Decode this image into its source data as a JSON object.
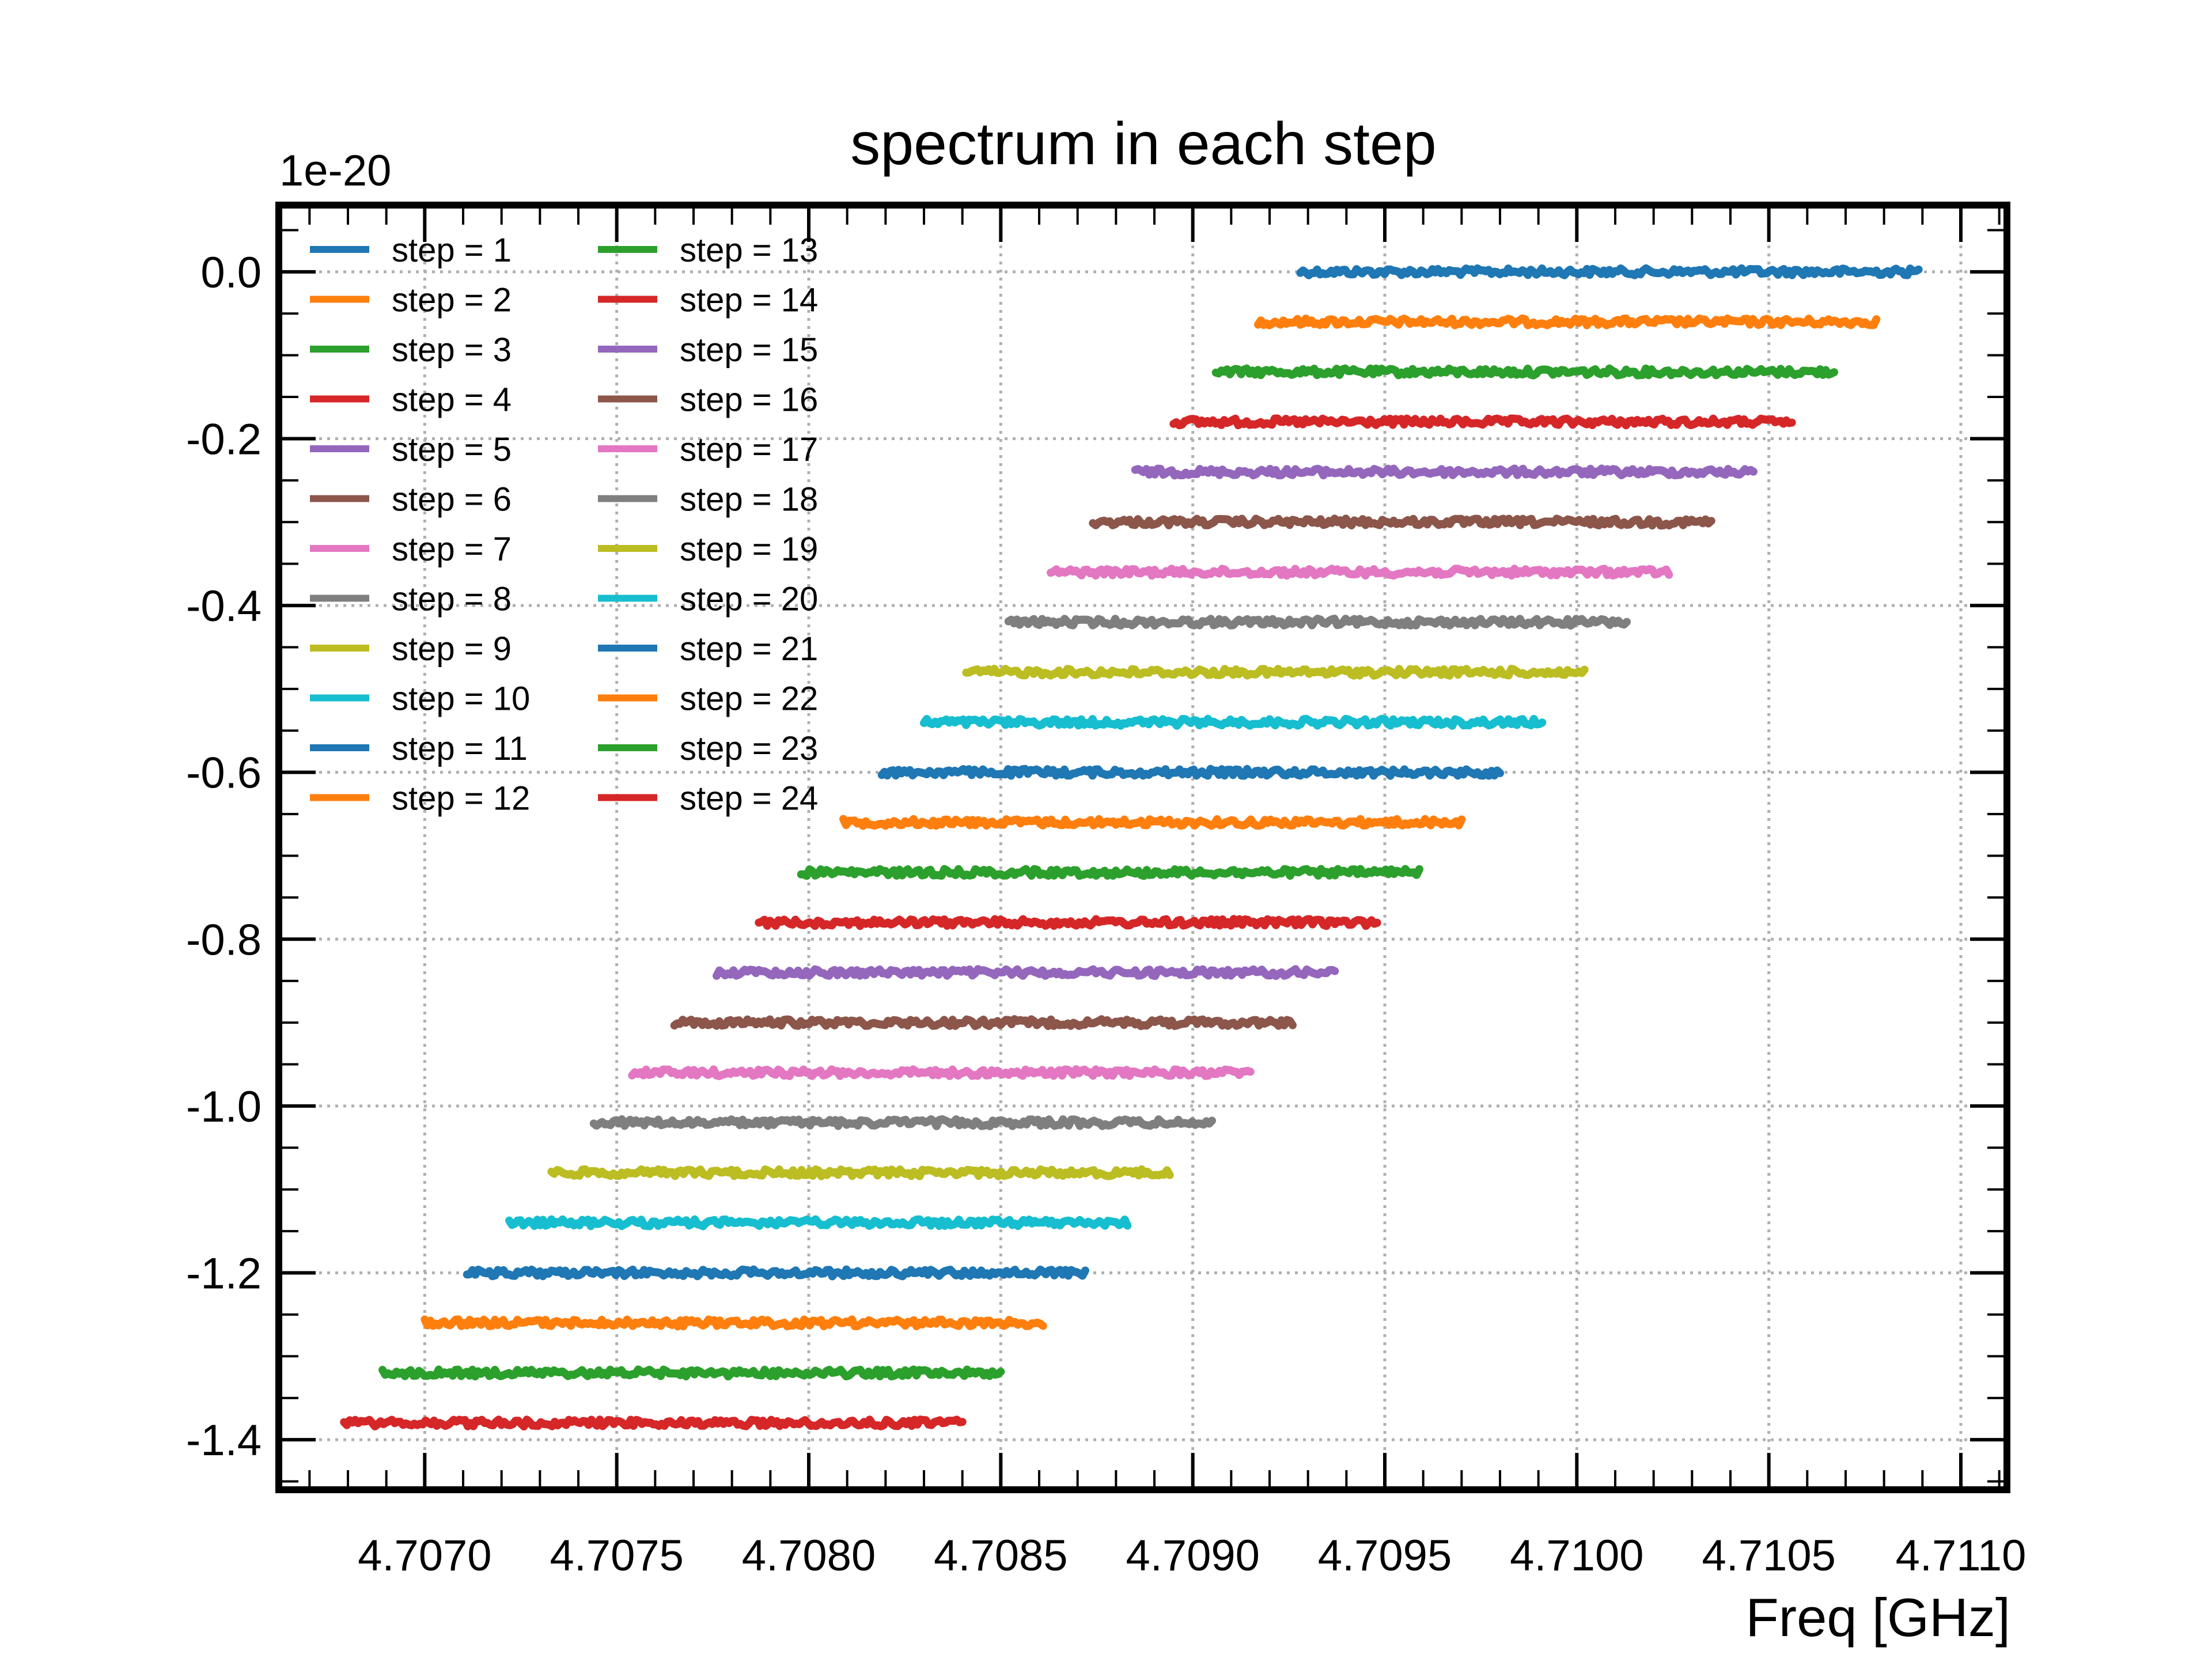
{
  "chart_data": {
    "type": "line",
    "title": "spectrum in each step",
    "xlabel": "Freq [GHz]",
    "ylabel": "",
    "y_multiplier_label": "1e-20",
    "xlim": [
      4.70662,
      4.71112
    ],
    "ylim": [
      -1.46,
      0.08
    ],
    "grid": true,
    "legend_placement": "top-left",
    "legend_columns": 2,
    "x_ticks": [
      4.707,
      4.7075,
      4.708,
      4.7085,
      4.709,
      4.7095,
      4.71,
      4.7105,
      4.711
    ],
    "x_tick_labels": [
      "4.7070",
      "4.7075",
      "4.7080",
      "4.7085",
      "4.7090",
      "4.7095",
      "4.7100",
      "4.7105",
      "4.7110"
    ],
    "y_ticks": [
      0.0,
      -0.2,
      -0.4,
      -0.6,
      -0.8,
      -1.0,
      -1.2,
      -1.4
    ],
    "y_tick_labels": [
      "0.0",
      "-0.2",
      "-0.4",
      "-0.6",
      "-0.8",
      "-1.0",
      "-1.2",
      "-1.4"
    ],
    "series": [
      {
        "name": "step = 1",
        "color": "#1f77b4",
        "x_start": 4.70928,
        "x_end": 4.71089,
        "y": 0.0
      },
      {
        "name": "step = 2",
        "color": "#ff7f0e",
        "x_start": 4.70917,
        "x_end": 4.71078,
        "y": -0.06
      },
      {
        "name": "step = 3",
        "color": "#2ca02c",
        "x_start": 4.70906,
        "x_end": 4.71067,
        "y": -0.12
      },
      {
        "name": "step = 4",
        "color": "#d62728",
        "x_start": 4.70895,
        "x_end": 4.71056,
        "y": -0.18
      },
      {
        "name": "step = 5",
        "color": "#9467bd",
        "x_start": 4.70885,
        "x_end": 4.71046,
        "y": -0.24
      },
      {
        "name": "step = 6",
        "color": "#8c564b",
        "x_start": 4.70874,
        "x_end": 4.71035,
        "y": -0.3
      },
      {
        "name": "step = 7",
        "color": "#e377c2",
        "x_start": 4.70863,
        "x_end": 4.71024,
        "y": -0.36
      },
      {
        "name": "step = 8",
        "color": "#7f7f7f",
        "x_start": 4.70852,
        "x_end": 4.71013,
        "y": -0.42
      },
      {
        "name": "step = 9",
        "color": "#bcbd22",
        "x_start": 4.70841,
        "x_end": 4.71002,
        "y": -0.48
      },
      {
        "name": "step = 10",
        "color": "#17becf",
        "x_start": 4.7083,
        "x_end": 4.70991,
        "y": -0.54
      },
      {
        "name": "step = 11",
        "color": "#1f77b4",
        "x_start": 4.70819,
        "x_end": 4.7098,
        "y": -0.6
      },
      {
        "name": "step = 12",
        "color": "#ff7f0e",
        "x_start": 4.70809,
        "x_end": 4.7097,
        "y": -0.66
      },
      {
        "name": "step = 13",
        "color": "#2ca02c",
        "x_start": 4.70798,
        "x_end": 4.70959,
        "y": -0.72
      },
      {
        "name": "step = 14",
        "color": "#d62728",
        "x_start": 4.70787,
        "x_end": 4.70948,
        "y": -0.78
      },
      {
        "name": "step = 15",
        "color": "#9467bd",
        "x_start": 4.70776,
        "x_end": 4.70937,
        "y": -0.84
      },
      {
        "name": "step = 16",
        "color": "#8c564b",
        "x_start": 4.70765,
        "x_end": 4.70926,
        "y": -0.9
      },
      {
        "name": "step = 17",
        "color": "#e377c2",
        "x_start": 4.70754,
        "x_end": 4.70915,
        "y": -0.96
      },
      {
        "name": "step = 18",
        "color": "#7f7f7f",
        "x_start": 4.70744,
        "x_end": 4.70905,
        "y": -1.02
      },
      {
        "name": "step = 19",
        "color": "#bcbd22",
        "x_start": 4.70733,
        "x_end": 4.70894,
        "y": -1.08
      },
      {
        "name": "step = 20",
        "color": "#17becf",
        "x_start": 4.70722,
        "x_end": 4.70883,
        "y": -1.14
      },
      {
        "name": "step = 21",
        "color": "#1f77b4",
        "x_start": 4.70711,
        "x_end": 4.70872,
        "y": -1.2
      },
      {
        "name": "step = 22",
        "color": "#ff7f0e",
        "x_start": 4.707,
        "x_end": 4.70861,
        "y": -1.26
      },
      {
        "name": "step = 23",
        "color": "#2ca02c",
        "x_start": 4.70689,
        "x_end": 4.7085,
        "y": -1.32
      },
      {
        "name": "step = 24",
        "color": "#d62728",
        "x_start": 4.70679,
        "x_end": 4.7084,
        "y": -1.38
      }
    ]
  }
}
